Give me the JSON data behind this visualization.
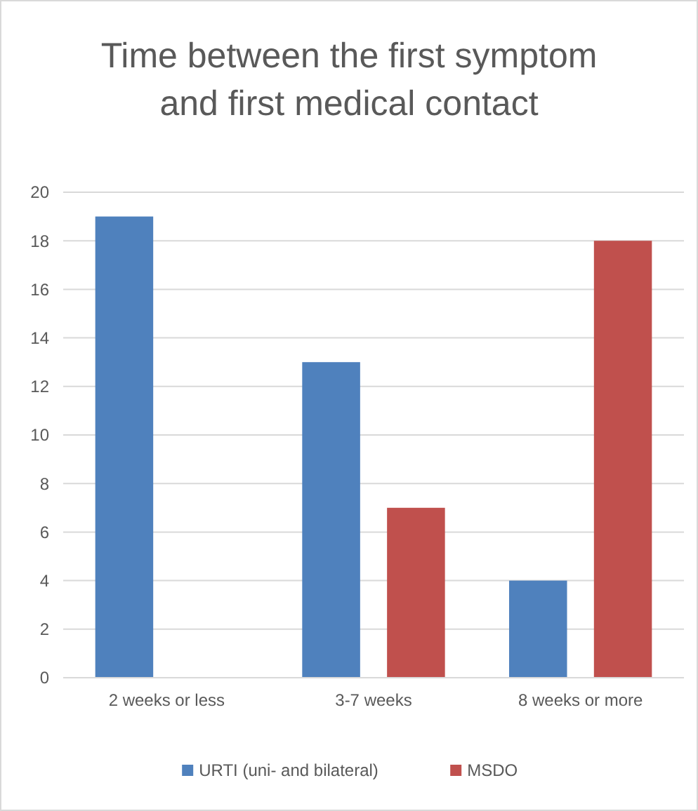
{
  "chart_data": {
    "type": "bar",
    "title": "Time between the first symptom and first medical contact",
    "categories": [
      "2 weeks or less",
      "3-7 weeks",
      "8 weeks or more"
    ],
    "series": [
      {
        "name": "URTI (uni- and bilateral)",
        "color": "#4f81bd",
        "values": [
          19,
          13,
          4
        ]
      },
      {
        "name": "MSDO",
        "color": "#c0504d",
        "values": [
          0,
          7,
          18
        ]
      }
    ],
    "ylim": [
      0,
      20
    ],
    "yticks": [
      0,
      2,
      4,
      6,
      8,
      10,
      12,
      14,
      16,
      18,
      20
    ],
    "grid": "y",
    "legend": "bottom"
  }
}
